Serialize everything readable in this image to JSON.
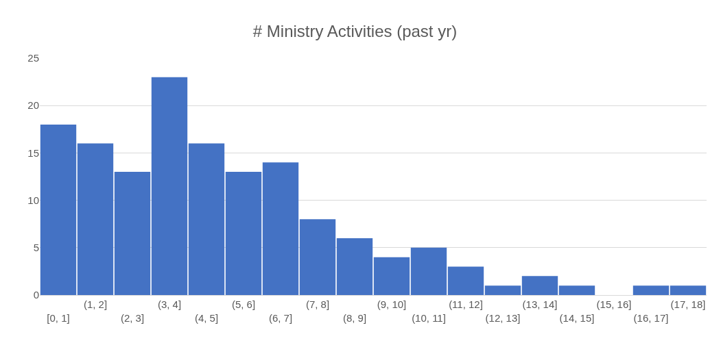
{
  "chart_data": {
    "type": "bar",
    "title": "# Ministry Activities (past yr)",
    "categories": [
      "[0, 1]",
      "(1, 2]",
      "(2, 3]",
      "(3, 4]",
      "(4, 5]",
      "(5, 6]",
      "(6, 7]",
      "(7, 8]",
      "(8, 9]",
      "(9, 10]",
      "(10, 11]",
      "(11, 12]",
      "(12, 13]",
      "(13, 14]",
      "(14, 15]",
      "(15, 16]",
      "(16, 17]",
      "(17, 18]"
    ],
    "values": [
      18,
      16,
      13,
      23,
      16,
      13,
      14,
      8,
      6,
      4,
      5,
      3,
      1,
      2,
      1,
      0,
      1,
      1
    ],
    "color": "#4472c4",
    "ylim": [
      0,
      25
    ],
    "yticks": [
      0,
      5,
      10,
      15,
      20,
      25
    ],
    "grid": "y"
  }
}
